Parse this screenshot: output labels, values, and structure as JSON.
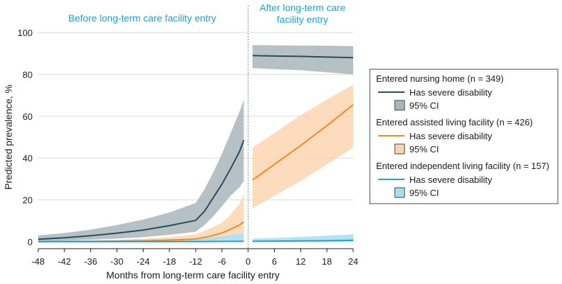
{
  "chart_data": {
    "type": "line",
    "title": "",
    "xlabel": "Months from long-term care facility entry",
    "ylabel": "Predicted prevalence, %",
    "xlim": [
      -48,
      24
    ],
    "ylim": [
      0,
      100
    ],
    "x_ticks": [
      -48,
      -42,
      -36,
      -30,
      -24,
      -18,
      -12,
      -6,
      0,
      6,
      12,
      18,
      24
    ],
    "x_tick_labels": [
      "-48",
      "-42",
      "-36",
      "-30",
      "-24",
      "-18",
      "-12",
      "-6",
      "0",
      "6",
      "12",
      "18",
      "24"
    ],
    "y_ticks": [
      0,
      20,
      40,
      60,
      80,
      100
    ],
    "y_tick_labels": [
      "0",
      "20",
      "40",
      "60",
      "80",
      "100"
    ],
    "sections": {
      "before": "Before long-term care facility entry",
      "after_line1": "After long-term care",
      "after_line2": "facility entry"
    },
    "series": [
      {
        "key": "nursing",
        "group_label": "Entered nursing home (n = 349)",
        "line_label": "Has severe disability",
        "ci_label": "95% CI",
        "color": "#2c4a5a",
        "ci_color": "#a9b6bc",
        "before": {
          "x": [
            -48,
            -42,
            -36,
            -30,
            -24,
            -18,
            -12,
            -10,
            -8,
            -6,
            -4,
            -2,
            -1
          ],
          "y": [
            1.2,
            1.9,
            2.9,
            4.1,
            5.6,
            7.7,
            10.2,
            14.5,
            21,
            27.5,
            35,
            43,
            48.5
          ],
          "lower": [
            0.3,
            0.6,
            1,
            1.5,
            2.2,
            3.3,
            4.8,
            8,
            12,
            17,
            22,
            26,
            29
          ],
          "upper": [
            3,
            4.2,
            5.8,
            8,
            10.6,
            14,
            18.5,
            25,
            33,
            42,
            52,
            62,
            68
          ]
        },
        "after": {
          "x": [
            1,
            6,
            12,
            18,
            24
          ],
          "y": [
            89,
            88.8,
            88.6,
            88.3,
            88
          ],
          "lower": [
            83,
            82.5,
            82,
            81,
            80
          ],
          "upper": [
            94,
            93.9,
            93.8,
            93.7,
            93.5
          ]
        }
      },
      {
        "key": "assisted",
        "group_label": "Entered assisted living facility (n = 426)",
        "line_label": "Has severe disability",
        "ci_label": "95% CI",
        "color": "#ef8b22",
        "ci_color": "#fbd6b2",
        "before": {
          "x": [
            -48,
            -42,
            -36,
            -30,
            -24,
            -18,
            -12,
            -9,
            -6,
            -4,
            -2,
            -1
          ],
          "y": [
            0.1,
            0.15,
            0.2,
            0.3,
            0.5,
            0.8,
            1.3,
            2.5,
            4.2,
            6,
            8,
            9.5
          ],
          "lower": [
            0,
            0,
            0,
            0,
            0.1,
            0.2,
            0.4,
            0.8,
            1.5,
            2.5,
            3.5,
            4
          ],
          "upper": [
            0.4,
            0.5,
            0.7,
            1,
            1.5,
            2.2,
            3.5,
            6,
            9,
            13,
            18,
            23
          ]
        },
        "after": {
          "x": [
            1,
            6,
            12,
            18,
            24
          ],
          "y": [
            29.5,
            37,
            46,
            55.5,
            65.5
          ],
          "lower": [
            16,
            22,
            29,
            37,
            45
          ],
          "upper": [
            45,
            52,
            60.5,
            68,
            75
          ]
        }
      },
      {
        "key": "independent",
        "group_label": "Entered independent living facility (n = 157)",
        "line_label": "Has severe disability",
        "ci_label": "95% CI",
        "color": "#1aa3d8",
        "ci_color": "#a6ddf2",
        "before": {
          "x": [
            -48,
            -36,
            -24,
            -12,
            -6,
            -1
          ],
          "y": [
            0.05,
            0.05,
            0.1,
            0.1,
            0.15,
            0.2
          ],
          "lower": [
            0,
            0,
            0,
            0,
            0,
            0
          ],
          "upper": [
            0.5,
            0.6,
            0.8,
            1.5,
            2.5,
            4
          ]
        },
        "after": {
          "x": [
            1,
            6,
            12,
            18,
            24
          ],
          "y": [
            0.2,
            0.3,
            0.4,
            0.5,
            0.7
          ],
          "lower": [
            0,
            0,
            0,
            0,
            0
          ],
          "upper": [
            1.5,
            1.8,
            2.3,
            2.9,
            3.5
          ]
        }
      }
    ],
    "legend_position": "right-middle",
    "grid": "horizontal"
  },
  "colors": {
    "grid": "#d9d9d9",
    "axis": "#1a1a1a",
    "divider": "#1aa3d8",
    "section_text": "#1aa3d8"
  }
}
